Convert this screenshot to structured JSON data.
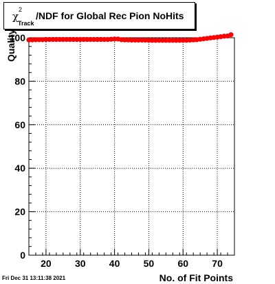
{
  "title": {
    "symbol": "χ",
    "superscript": "2",
    "subscript": "Track",
    "text": "/NDF for Global Rec Pion NoHits"
  },
  "timestamp": "Fri Dec 31 13:11:38 2021",
  "colors": {
    "marker": "#ff0000",
    "axis": "#000000",
    "grid": "#000000"
  },
  "chart_data": {
    "type": "scatter",
    "xlabel": "No. of Fit Points",
    "ylabel": "Quality",
    "xlim": [
      15,
      75
    ],
    "ylim": [
      0,
      100
    ],
    "xticks": [
      20,
      30,
      40,
      50,
      60,
      70
    ],
    "yticks": [
      0,
      20,
      40,
      60,
      80,
      100
    ],
    "grid": true,
    "series": [
      {
        "x": [
          15,
          16,
          17,
          18,
          19,
          20,
          21,
          22,
          23,
          24,
          25,
          26,
          27,
          28,
          29,
          30,
          31,
          32,
          33,
          34,
          35,
          36,
          37,
          38,
          39,
          40,
          41,
          42,
          43,
          44,
          45,
          46,
          47,
          48,
          49,
          50,
          51,
          52,
          53,
          54,
          55,
          56,
          57,
          58,
          59,
          60,
          61,
          62,
          63,
          64,
          65,
          66,
          67,
          68,
          69,
          70,
          71,
          72,
          73,
          74
        ],
        "y": [
          99.0,
          99.0,
          99.1,
          99.1,
          99.1,
          99.2,
          99.2,
          99.2,
          99.2,
          99.2,
          99.2,
          99.2,
          99.2,
          99.2,
          99.2,
          99.2,
          99.2,
          99.2,
          99.2,
          99.2,
          99.2,
          99.2,
          99.2,
          99.2,
          99.3,
          99.4,
          99.4,
          99.1,
          99.0,
          99.0,
          98.9,
          98.9,
          98.9,
          98.9,
          98.9,
          98.8,
          98.8,
          98.8,
          98.8,
          98.8,
          98.8,
          98.8,
          98.8,
          98.8,
          98.8,
          98.8,
          98.8,
          98.9,
          99.0,
          99.1,
          99.3,
          99.5,
          99.7,
          99.9,
          100.1,
          100.3,
          100.5,
          100.7,
          100.8,
          101.4
        ]
      }
    ]
  }
}
